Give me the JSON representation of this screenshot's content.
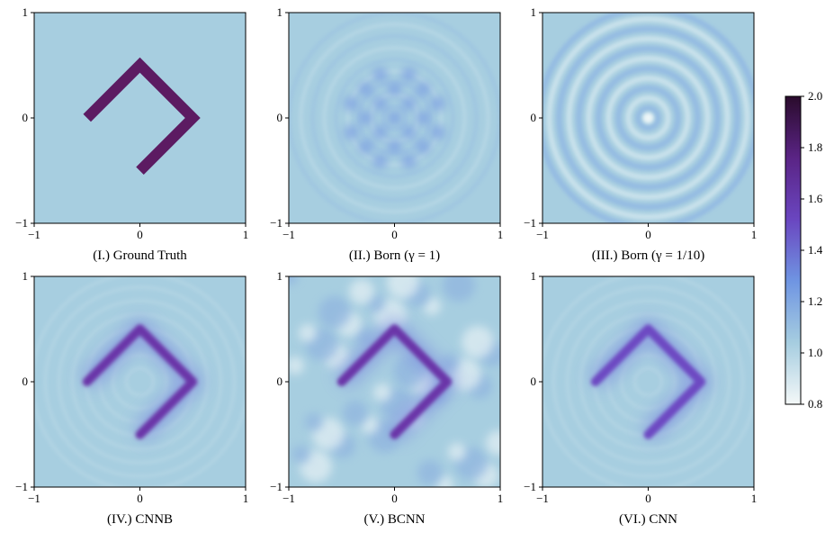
{
  "chart_data": [
    {
      "type": "heatmap",
      "title": "(I.) Ground Truth",
      "xlim": [
        -1,
        1
      ],
      "ylim": [
        -1,
        1
      ],
      "xticks": [
        {
          "value": -1,
          "label": "−1"
        },
        0,
        1
      ],
      "yticks": [
        {
          "value": -1,
          "label": "−1"
        },
        0,
        1
      ]
    },
    {
      "type": "heatmap",
      "title": "(II.) Born (γ = 1)",
      "xlim": [
        -1,
        1
      ],
      "ylim": [
        -1,
        1
      ],
      "xticks": [
        {
          "value": -1,
          "label": "−1"
        },
        0,
        1
      ],
      "yticks": [
        {
          "value": -1,
          "label": "−1"
        },
        0,
        1
      ]
    },
    {
      "type": "heatmap",
      "title": "(III.) Born (γ = 1/10)",
      "xlim": [
        -1,
        1
      ],
      "ylim": [
        -1,
        1
      ],
      "xticks": [
        {
          "value": -1,
          "label": "−1"
        },
        0,
        1
      ],
      "yticks": [
        {
          "value": -1,
          "label": "−1"
        },
        0,
        1
      ]
    },
    {
      "type": "heatmap",
      "title": "(IV.) CNNB",
      "xlim": [
        -1,
        1
      ],
      "ylim": [
        -1,
        1
      ],
      "xticks": [
        {
          "value": -1,
          "label": "−1"
        },
        0,
        1
      ],
      "yticks": [
        {
          "value": -1,
          "label": "−1"
        },
        0,
        1
      ]
    },
    {
      "type": "heatmap",
      "title": "(V.) BCNN",
      "xlim": [
        -1,
        1
      ],
      "ylim": [
        -1,
        1
      ],
      "xticks": [
        {
          "value": -1,
          "label": "−1"
        },
        0,
        1
      ],
      "yticks": [
        {
          "value": -1,
          "label": "−1"
        },
        0,
        1
      ]
    },
    {
      "type": "heatmap",
      "title": "(VI.) CNN",
      "xlim": [
        -1,
        1
      ],
      "ylim": [
        -1,
        1
      ],
      "xticks": [
        {
          "value": -1,
          "label": "−1"
        },
        0,
        1
      ],
      "yticks": [
        {
          "value": -1,
          "label": "−1"
        },
        0,
        1
      ]
    },
    {
      "type": "colorbar",
      "ylim": [
        0.8,
        2.0
      ],
      "yticks": [
        0.8,
        {
          "value": 1.0,
          "label": "1.0"
        },
        1.2,
        1.4,
        1.6,
        1.8,
        {
          "value": 2.0,
          "label": "2.0"
        }
      ],
      "colors": [
        "#f4f8f8",
        "#a6cde0",
        "#6f95e2",
        "#6a46c0",
        "#5a2485",
        "#2a0b2c"
      ]
    }
  ]
}
